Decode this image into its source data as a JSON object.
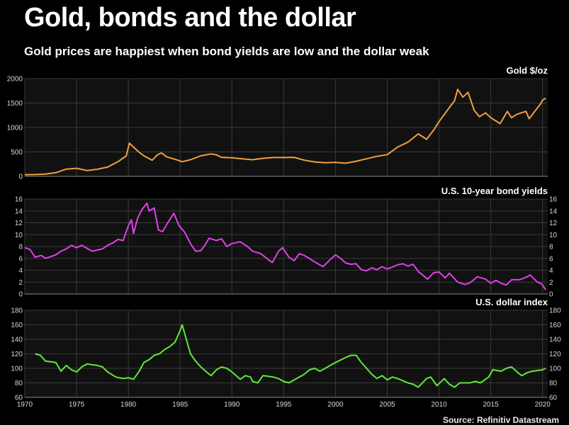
{
  "title": "Gold, bonds and the dollar",
  "subtitle": "Gold prices are happiest when bond yields are low and the dollar weak",
  "source": "Source: Refinitiv Datastream",
  "colors": {
    "gold": "#f0a040",
    "yields": "#e040e8",
    "dollar": "#60e83c",
    "background": "#000000",
    "panel": "#111111"
  },
  "chart_data": [
    {
      "type": "line",
      "title": "Gold $/oz",
      "series": [
        {
          "name": "Gold $/oz",
          "color": "#f0a040",
          "points": [
            [
              1970,
              35
            ],
            [
              1971,
              38
            ],
            [
              1972,
              48
            ],
            [
              1973,
              75
            ],
            [
              1974,
              150
            ],
            [
              1975,
              165
            ],
            [
              1976,
              120
            ],
            [
              1977,
              145
            ],
            [
              1978,
              190
            ],
            [
              1979,
              300
            ],
            [
              1979.8,
              420
            ],
            [
              1980.1,
              680
            ],
            [
              1980.5,
              600
            ],
            [
              1981,
              500
            ],
            [
              1981.5,
              420
            ],
            [
              1982.3,
              330
            ],
            [
              1982.8,
              440
            ],
            [
              1983.2,
              480
            ],
            [
              1983.7,
              400
            ],
            [
              1984.5,
              350
            ],
            [
              1985.2,
              300
            ],
            [
              1986,
              340
            ],
            [
              1987,
              420
            ],
            [
              1988,
              460
            ],
            [
              1988.5,
              440
            ],
            [
              1989,
              390
            ],
            [
              1990,
              380
            ],
            [
              1991,
              360
            ],
            [
              1992,
              340
            ],
            [
              1993,
              370
            ],
            [
              1994,
              385
            ],
            [
              1995,
              385
            ],
            [
              1996,
              390
            ],
            [
              1997,
              330
            ],
            [
              1998,
              295
            ],
            [
              1999,
              280
            ],
            [
              2000,
              285
            ],
            [
              2001,
              270
            ],
            [
              2002,
              310
            ],
            [
              2003,
              360
            ],
            [
              2004,
              410
            ],
            [
              2005,
              445
            ],
            [
              2006,
              600
            ],
            [
              2007,
              700
            ],
            [
              2008,
              870
            ],
            [
              2008.8,
              760
            ],
            [
              2009.5,
              950
            ],
            [
              2010,
              1120
            ],
            [
              2010.8,
              1350
            ],
            [
              2011.5,
              1550
            ],
            [
              2011.8,
              1780
            ],
            [
              2012.3,
              1620
            ],
            [
              2012.8,
              1720
            ],
            [
              2013.4,
              1350
            ],
            [
              2013.9,
              1220
            ],
            [
              2014.5,
              1300
            ],
            [
              2015,
              1200
            ],
            [
              2015.9,
              1080
            ],
            [
              2016.6,
              1330
            ],
            [
              2017,
              1200
            ],
            [
              2017.5,
              1270
            ],
            [
              2018.4,
              1330
            ],
            [
              2018.7,
              1180
            ],
            [
              2019.5,
              1400
            ],
            [
              2019.8,
              1480
            ],
            [
              2020,
              1560
            ],
            [
              2020.3,
              1600
            ]
          ]
        }
      ],
      "xlim": [
        1970,
        2020.5
      ],
      "ylim": [
        0,
        2000
      ],
      "yticks": [
        0,
        500,
        1000,
        1500,
        2000
      ],
      "yticks_right": []
    },
    {
      "type": "line",
      "title": "U.S. 10-year bond yields",
      "series": [
        {
          "name": "U.S. 10-year bond yields",
          "color": "#e040e8",
          "points": [
            [
              1970,
              7.8
            ],
            [
              1970.5,
              7.5
            ],
            [
              1971,
              6.2
            ],
            [
              1971.6,
              6.5
            ],
            [
              1972,
              6.0
            ],
            [
              1973,
              6.6
            ],
            [
              1973.5,
              7.2
            ],
            [
              1974,
              7.6
            ],
            [
              1974.5,
              8.2
            ],
            [
              1975,
              7.8
            ],
            [
              1975.5,
              8.2
            ],
            [
              1976,
              7.7
            ],
            [
              1976.5,
              7.2
            ],
            [
              1977,
              7.4
            ],
            [
              1977.5,
              7.6
            ],
            [
              1978,
              8.2
            ],
            [
              1978.5,
              8.6
            ],
            [
              1979,
              9.2
            ],
            [
              1979.5,
              9.0
            ],
            [
              1980,
              11.5
            ],
            [
              1980.3,
              12.5
            ],
            [
              1980.5,
              10.2
            ],
            [
              1980.9,
              12.8
            ],
            [
              1981.3,
              14.2
            ],
            [
              1981.8,
              15.3
            ],
            [
              1982,
              14.0
            ],
            [
              1982.5,
              14.5
            ],
            [
              1982.9,
              10.8
            ],
            [
              1983.3,
              10.5
            ],
            [
              1983.8,
              12.0
            ],
            [
              1984.4,
              13.6
            ],
            [
              1984.9,
              11.5
            ],
            [
              1985.4,
              10.5
            ],
            [
              1986,
              8.5
            ],
            [
              1986.5,
              7.2
            ],
            [
              1987,
              7.3
            ],
            [
              1987.5,
              8.5
            ],
            [
              1987.8,
              9.4
            ],
            [
              1988.5,
              9.0
            ],
            [
              1989,
              9.3
            ],
            [
              1989.5,
              8.0
            ],
            [
              1990,
              8.5
            ],
            [
              1990.8,
              8.8
            ],
            [
              1991.5,
              8.0
            ],
            [
              1992,
              7.2
            ],
            [
              1992.8,
              6.8
            ],
            [
              1993.5,
              5.8
            ],
            [
              1993.9,
              5.3
            ],
            [
              1994.5,
              7.2
            ],
            [
              1994.9,
              7.8
            ],
            [
              1995.5,
              6.2
            ],
            [
              1996,
              5.6
            ],
            [
              1996.5,
              6.8
            ],
            [
              1997,
              6.5
            ],
            [
              1998,
              5.4
            ],
            [
              1998.8,
              4.6
            ],
            [
              1999.5,
              5.8
            ],
            [
              2000,
              6.6
            ],
            [
              2000.5,
              6.0
            ],
            [
              2001,
              5.2
            ],
            [
              2001.5,
              5.0
            ],
            [
              2002,
              5.1
            ],
            [
              2002.5,
              4.1
            ],
            [
              2003,
              3.9
            ],
            [
              2003.5,
              4.4
            ],
            [
              2004,
              4.1
            ],
            [
              2004.5,
              4.6
            ],
            [
              2005,
              4.2
            ],
            [
              2006,
              4.9
            ],
            [
              2006.5,
              5.1
            ],
            [
              2007,
              4.7
            ],
            [
              2007.5,
              5.0
            ],
            [
              2008,
              3.8
            ],
            [
              2008.9,
              2.5
            ],
            [
              2009.5,
              3.6
            ],
            [
              2010,
              3.7
            ],
            [
              2010.6,
              2.7
            ],
            [
              2011,
              3.5
            ],
            [
              2011.8,
              2.0
            ],
            [
              2012.5,
              1.6
            ],
            [
              2013,
              1.9
            ],
            [
              2013.7,
              2.9
            ],
            [
              2014.5,
              2.5
            ],
            [
              2015,
              1.8
            ],
            [
              2015.5,
              2.3
            ],
            [
              2016,
              1.8
            ],
            [
              2016.5,
              1.5
            ],
            [
              2017,
              2.4
            ],
            [
              2017.8,
              2.4
            ],
            [
              2018.5,
              2.9
            ],
            [
              2018.8,
              3.2
            ],
            [
              2019.5,
              2.0
            ],
            [
              2019.8,
              1.8
            ],
            [
              2020,
              1.5
            ],
            [
              2020.3,
              0.7
            ]
          ]
        }
      ],
      "xlim": [
        1970,
        2020.5
      ],
      "ylim": [
        0,
        16
      ],
      "yticks": [
        0,
        2,
        4,
        6,
        8,
        10,
        12,
        14,
        16
      ],
      "yticks_right": [
        0,
        2,
        4,
        6,
        8,
        10,
        12,
        14,
        16
      ]
    },
    {
      "type": "line",
      "title": "U.S. dollar index",
      "series": [
        {
          "name": "U.S. dollar index",
          "color": "#60e83c",
          "points": [
            [
              1971,
              120
            ],
            [
              1971.5,
              118
            ],
            [
              1972,
              110
            ],
            [
              1973,
              108
            ],
            [
              1973.5,
              96
            ],
            [
              1974,
              104
            ],
            [
              1974.5,
              98
            ],
            [
              1975,
              95
            ],
            [
              1975.5,
              102
            ],
            [
              1976,
              106
            ],
            [
              1977,
              104
            ],
            [
              1977.5,
              102
            ],
            [
              1978,
              95
            ],
            [
              1978.8,
              88
            ],
            [
              1979.5,
              86
            ],
            [
              1980,
              87
            ],
            [
              1980.5,
              85
            ],
            [
              1981,
              95
            ],
            [
              1981.5,
              108
            ],
            [
              1982,
              112
            ],
            [
              1982.5,
              118
            ],
            [
              1983,
              120
            ],
            [
              1983.5,
              126
            ],
            [
              1984,
              130
            ],
            [
              1984.5,
              136
            ],
            [
              1985,
              152
            ],
            [
              1985.2,
              160
            ],
            [
              1985.5,
              145
            ],
            [
              1986,
              120
            ],
            [
              1986.5,
              110
            ],
            [
              1987,
              102
            ],
            [
              1987.8,
              92
            ],
            [
              1988,
              90
            ],
            [
              1988.5,
              98
            ],
            [
              1989,
              102
            ],
            [
              1989.5,
              100
            ],
            [
              1990,
              95
            ],
            [
              1990.8,
              85
            ],
            [
              1991.3,
              90
            ],
            [
              1991.8,
              88
            ],
            [
              1992,
              82
            ],
            [
              1992.5,
              80
            ],
            [
              1993,
              90
            ],
            [
              1994,
              88
            ],
            [
              1994.5,
              86
            ],
            [
              1995,
              82
            ],
            [
              1995.5,
              80
            ],
            [
              1996,
              84
            ],
            [
              1997,
              92
            ],
            [
              1997.5,
              98
            ],
            [
              1998,
              100
            ],
            [
              1998.5,
              96
            ],
            [
              1999,
              100
            ],
            [
              2000,
              108
            ],
            [
              2001,
              115
            ],
            [
              2001.5,
              118
            ],
            [
              2002,
              118
            ],
            [
              2002.5,
              108
            ],
            [
              2003,
              100
            ],
            [
              2003.5,
              92
            ],
            [
              2004,
              86
            ],
            [
              2004.5,
              90
            ],
            [
              2005,
              84
            ],
            [
              2005.5,
              88
            ],
            [
              2006,
              86
            ],
            [
              2007,
              80
            ],
            [
              2007.5,
              78
            ],
            [
              2008,
              74
            ],
            [
              2008.8,
              86
            ],
            [
              2009.2,
              88
            ],
            [
              2009.8,
              76
            ],
            [
              2010.5,
              86
            ],
            [
              2011,
              78
            ],
            [
              2011.5,
              74
            ],
            [
              2012,
              80
            ],
            [
              2013,
              80
            ],
            [
              2013.5,
              82
            ],
            [
              2014,
              80
            ],
            [
              2014.8,
              88
            ],
            [
              2015.2,
              98
            ],
            [
              2016,
              96
            ],
            [
              2016.5,
              100
            ],
            [
              2017,
              102
            ],
            [
              2017.8,
              92
            ],
            [
              2018,
              90
            ],
            [
              2018.5,
              94
            ],
            [
              2019,
              96
            ],
            [
              2019.5,
              97
            ],
            [
              2020,
              98
            ],
            [
              2020.3,
              100
            ]
          ]
        }
      ],
      "xlim": [
        1970,
        2020.5
      ],
      "ylim": [
        60,
        180
      ],
      "yticks": [
        60,
        80,
        100,
        120,
        140,
        160,
        180
      ],
      "yticks_right": [
        60,
        80,
        100,
        120,
        140,
        160,
        180
      ],
      "xticks": [
        1970,
        1975,
        1980,
        1985,
        1990,
        1995,
        2000,
        2005,
        2010,
        2015,
        2020
      ]
    }
  ]
}
